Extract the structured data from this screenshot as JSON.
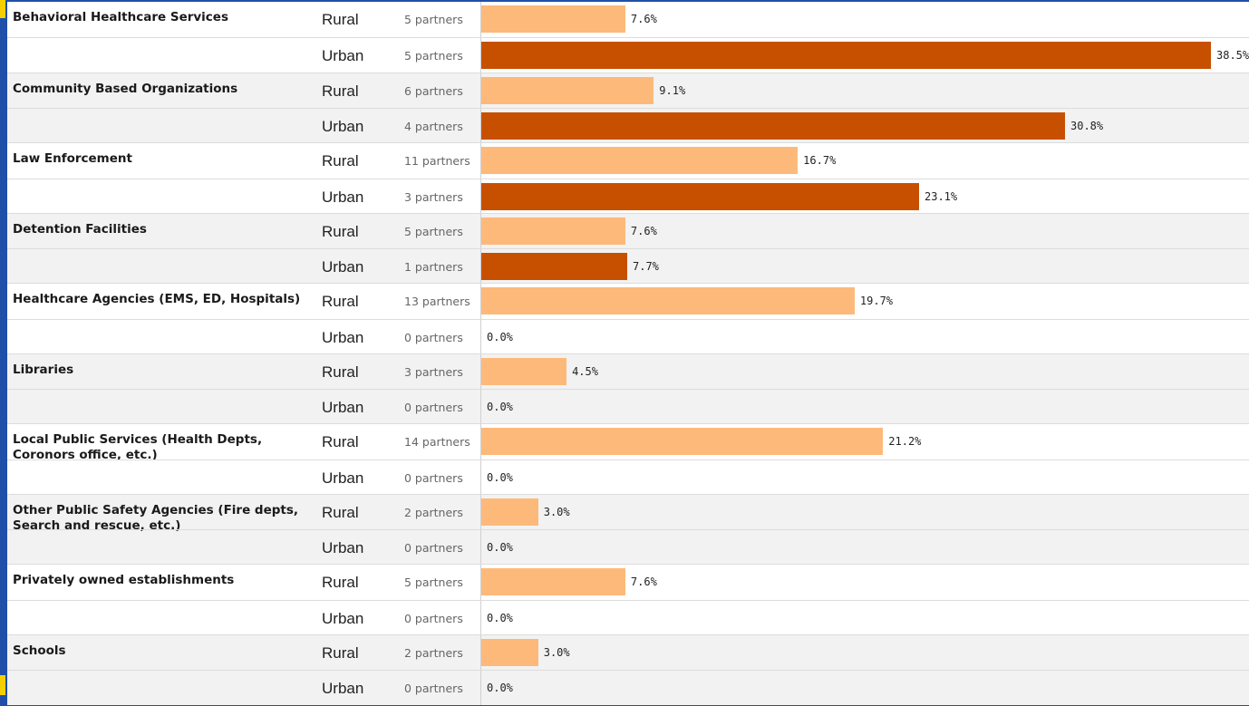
{
  "colors": {
    "rural": "#fdb97a",
    "urban": "#c75000",
    "accent": "#f5d000",
    "frame": "#1f4fa8"
  },
  "chart_data": {
    "type": "bar",
    "orientation": "horizontal",
    "unit_label": "partners",
    "categories": [
      {
        "label": "Behavioral Healthcare Services",
        "rows": [
          {
            "location": "Rural",
            "partners": "5 partners",
            "value": 7.6,
            "pct": "7.6%"
          },
          {
            "location": "Urban",
            "partners": "5 partners",
            "value": 38.5,
            "pct": "38.5%"
          }
        ]
      },
      {
        "label": "Community Based Organizations",
        "rows": [
          {
            "location": "Rural",
            "partners": "6 partners",
            "value": 9.1,
            "pct": "9.1%"
          },
          {
            "location": "Urban",
            "partners": "4 partners",
            "value": 30.8,
            "pct": "30.8%"
          }
        ]
      },
      {
        "label": "Law Enforcement",
        "rows": [
          {
            "location": "Rural",
            "partners": "11 partners",
            "value": 16.7,
            "pct": "16.7%"
          },
          {
            "location": "Urban",
            "partners": "3 partners",
            "value": 23.1,
            "pct": "23.1%"
          }
        ]
      },
      {
        "label": "Detention Facilities",
        "rows": [
          {
            "location": "Rural",
            "partners": "5 partners",
            "value": 7.6,
            "pct": "7.6%"
          },
          {
            "location": "Urban",
            "partners": "1 partners",
            "value": 7.7,
            "pct": "7.7%"
          }
        ]
      },
      {
        "label": "Healthcare Agencies (EMS, ED, Hospitals)",
        "rows": [
          {
            "location": "Rural",
            "partners": "13 partners",
            "value": 19.7,
            "pct": "19.7%"
          },
          {
            "location": "Urban",
            "partners": "0 partners",
            "value": 0.0,
            "pct": "0.0%"
          }
        ]
      },
      {
        "label": "Libraries",
        "rows": [
          {
            "location": "Rural",
            "partners": "3 partners",
            "value": 4.5,
            "pct": "4.5%"
          },
          {
            "location": "Urban",
            "partners": "0 partners",
            "value": 0.0,
            "pct": "0.0%"
          }
        ]
      },
      {
        "label": "Local Public Services (Health Depts, Coronors office, etc.)",
        "rows": [
          {
            "location": "Rural",
            "partners": "14 partners",
            "value": 21.2,
            "pct": "21.2%"
          },
          {
            "location": "Urban",
            "partners": "0 partners",
            "value": 0.0,
            "pct": "0.0%"
          }
        ]
      },
      {
        "label": "Other Public Safety Agencies (Fire depts, Search and rescue, etc.)",
        "rows": [
          {
            "location": "Rural",
            "partners": "2 partners",
            "value": 3.0,
            "pct": "3.0%"
          },
          {
            "location": "Urban",
            "partners": "0 partners",
            "value": 0.0,
            "pct": "0.0%"
          }
        ]
      },
      {
        "label": "Privately owned establishments",
        "rows": [
          {
            "location": "Rural",
            "partners": "5 partners",
            "value": 7.6,
            "pct": "7.6%"
          },
          {
            "location": "Urban",
            "partners": "0 partners",
            "value": 0.0,
            "pct": "0.0%"
          }
        ]
      },
      {
        "label": "Schools",
        "rows": [
          {
            "location": "Rural",
            "partners": "2 partners",
            "value": 3.0,
            "pct": "3.0%"
          },
          {
            "location": "Urban",
            "partners": "0 partners",
            "value": 0.0,
            "pct": "0.0%"
          }
        ]
      }
    ],
    "xlim": [
      0,
      38.5
    ],
    "grid": false,
    "legend": "none"
  }
}
